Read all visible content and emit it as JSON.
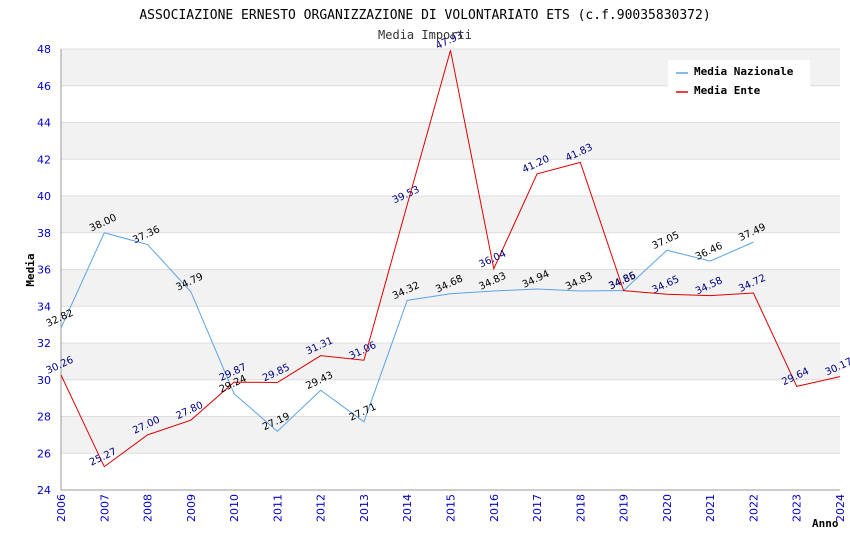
{
  "chart_data": {
    "type": "line",
    "title": "ASSOCIAZIONE ERNESTO ORGANIZZAZIONE DI VOLONTARIATO ETS (c.f.90035830372)",
    "subtitle": "Media Importi",
    "xlabel": "Anno",
    "ylabel": "Media",
    "ylim": [
      24,
      48
    ],
    "ytick_step": 2,
    "y_ticks": [
      "24",
      "26",
      "28",
      "30",
      "32",
      "34",
      "36",
      "38",
      "40",
      "42",
      "44",
      "46",
      "48"
    ],
    "x": [
      "2006",
      "2007",
      "2008",
      "2009",
      "2010",
      "2011",
      "2012",
      "2013",
      "2014",
      "2015",
      "2016",
      "2017",
      "2018",
      "2019",
      "2020",
      "2021",
      "2022",
      "2023",
      "2024"
    ],
    "legend_position": "top-right",
    "grid": true,
    "series": [
      {
        "name": "Media Nazionale",
        "color": "#5ba3e6",
        "label_color": "#000000",
        "values": [
          32.82,
          38.0,
          37.36,
          34.79,
          29.24,
          27.19,
          29.43,
          27.71,
          34.32,
          34.68,
          34.83,
          34.94,
          34.83,
          34.86,
          37.05,
          36.46,
          37.49,
          null,
          null
        ],
        "labels": [
          "32.82",
          "38.00",
          "37.36",
          "34.79",
          "29.24",
          "27.19",
          "29.43",
          "27.71",
          "34.32",
          "34.68",
          "34.83",
          "34.94",
          "34.83",
          "34.86",
          "37.05",
          "36.46",
          "37.49",
          null,
          null
        ]
      },
      {
        "name": "Media Ente",
        "color": "#e00000",
        "label_color": "#000080",
        "values": [
          30.26,
          25.27,
          27.0,
          27.8,
          29.87,
          29.85,
          31.31,
          31.06,
          39.53,
          47.93,
          36.04,
          41.2,
          41.83,
          34.85,
          34.65,
          34.58,
          34.72,
          29.64,
          30.17
        ],
        "labels": [
          "30.26",
          "25.27",
          "27.00",
          "27.80",
          "29.87",
          "29.85",
          "31.31",
          "31.06",
          "39.53",
          "47.93",
          "36.04",
          "41.20",
          "41.83",
          "34.85",
          "34.65",
          "34.58",
          "34.72",
          "29.64",
          "30.17"
        ]
      }
    ]
  }
}
